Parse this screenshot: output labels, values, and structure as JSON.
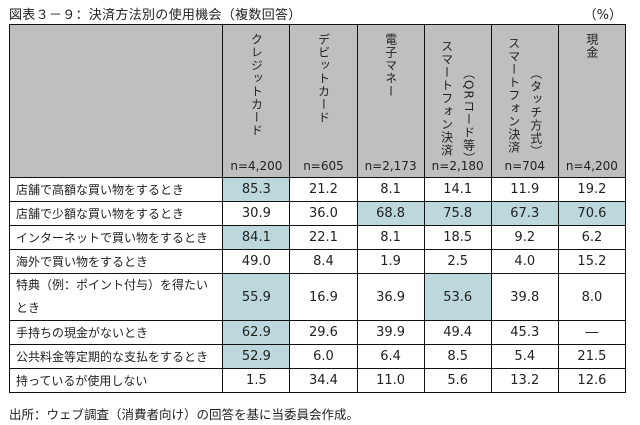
{
  "title": "図表３－９：決済方法別の使用機会（複数回答）",
  "unit": "（%）",
  "columns": [
    {
      "label": "クレジットカード",
      "sub": "",
      "n": "n=4,200"
    },
    {
      "label": "デビットカード",
      "sub": "",
      "n": "n=605"
    },
    {
      "label": "電子マネー",
      "sub": "",
      "n": "n=2,173"
    },
    {
      "label": "スマートフォン決済",
      "sub": "（QRコード等）",
      "n": "n=2,180"
    },
    {
      "label": "スマートフォン決済",
      "sub": "（タッチ方式）",
      "n": "n=704"
    },
    {
      "label": "現金",
      "sub": "",
      "n": "n=4,200"
    }
  ],
  "rows": [
    {
      "label": "店舗で高額な買い物をするとき",
      "values": [
        "85.3",
        "21.2",
        "8.1",
        "14.1",
        "11.9",
        "19.2"
      ],
      "highlight": [
        true,
        false,
        false,
        false,
        false,
        false
      ]
    },
    {
      "label": "店舗で少額な買い物をするとき",
      "values": [
        "30.9",
        "36.0",
        "68.8",
        "75.8",
        "67.3",
        "70.6"
      ],
      "highlight": [
        false,
        false,
        true,
        true,
        true,
        true
      ]
    },
    {
      "label": "インターネットで買い物をするとき",
      "values": [
        "84.1",
        "22.1",
        "8.1",
        "18.5",
        "9.2",
        "6.2"
      ],
      "highlight": [
        true,
        false,
        false,
        false,
        false,
        false
      ]
    },
    {
      "label": "海外で買い物をするとき",
      "values": [
        "49.0",
        "8.4",
        "1.9",
        "2.5",
        "4.0",
        "15.2"
      ],
      "highlight": [
        false,
        false,
        false,
        false,
        false,
        false
      ]
    },
    {
      "label": "特典（例：ポイント付与）を得たいとき",
      "values": [
        "55.9",
        "16.9",
        "36.9",
        "53.6",
        "39.8",
        "8.0"
      ],
      "highlight": [
        true,
        false,
        false,
        true,
        false,
        false
      ]
    },
    {
      "label": "手持ちの現金がないとき",
      "values": [
        "62.9",
        "29.6",
        "39.9",
        "49.4",
        "45.3",
        "―"
      ],
      "highlight": [
        true,
        false,
        false,
        false,
        false,
        false
      ]
    },
    {
      "label": "公共料金等定期的な支払をするとき",
      "values": [
        "52.9",
        "6.0",
        "6.4",
        "8.5",
        "5.4",
        "21.5"
      ],
      "highlight": [
        true,
        false,
        false,
        false,
        false,
        false
      ]
    },
    {
      "label": "持っているが使用しない",
      "values": [
        "1.5",
        "34.4",
        "11.0",
        "5.6",
        "13.2",
        "12.6"
      ],
      "highlight": [
        false,
        false,
        false,
        false,
        false,
        false
      ]
    }
  ],
  "highlight_color": "#bcd8dc",
  "header_color": "#bfbfbf",
  "footnote": "出所：ウェブ調査（消費者向け）の回答を基に当委員会作成。"
}
